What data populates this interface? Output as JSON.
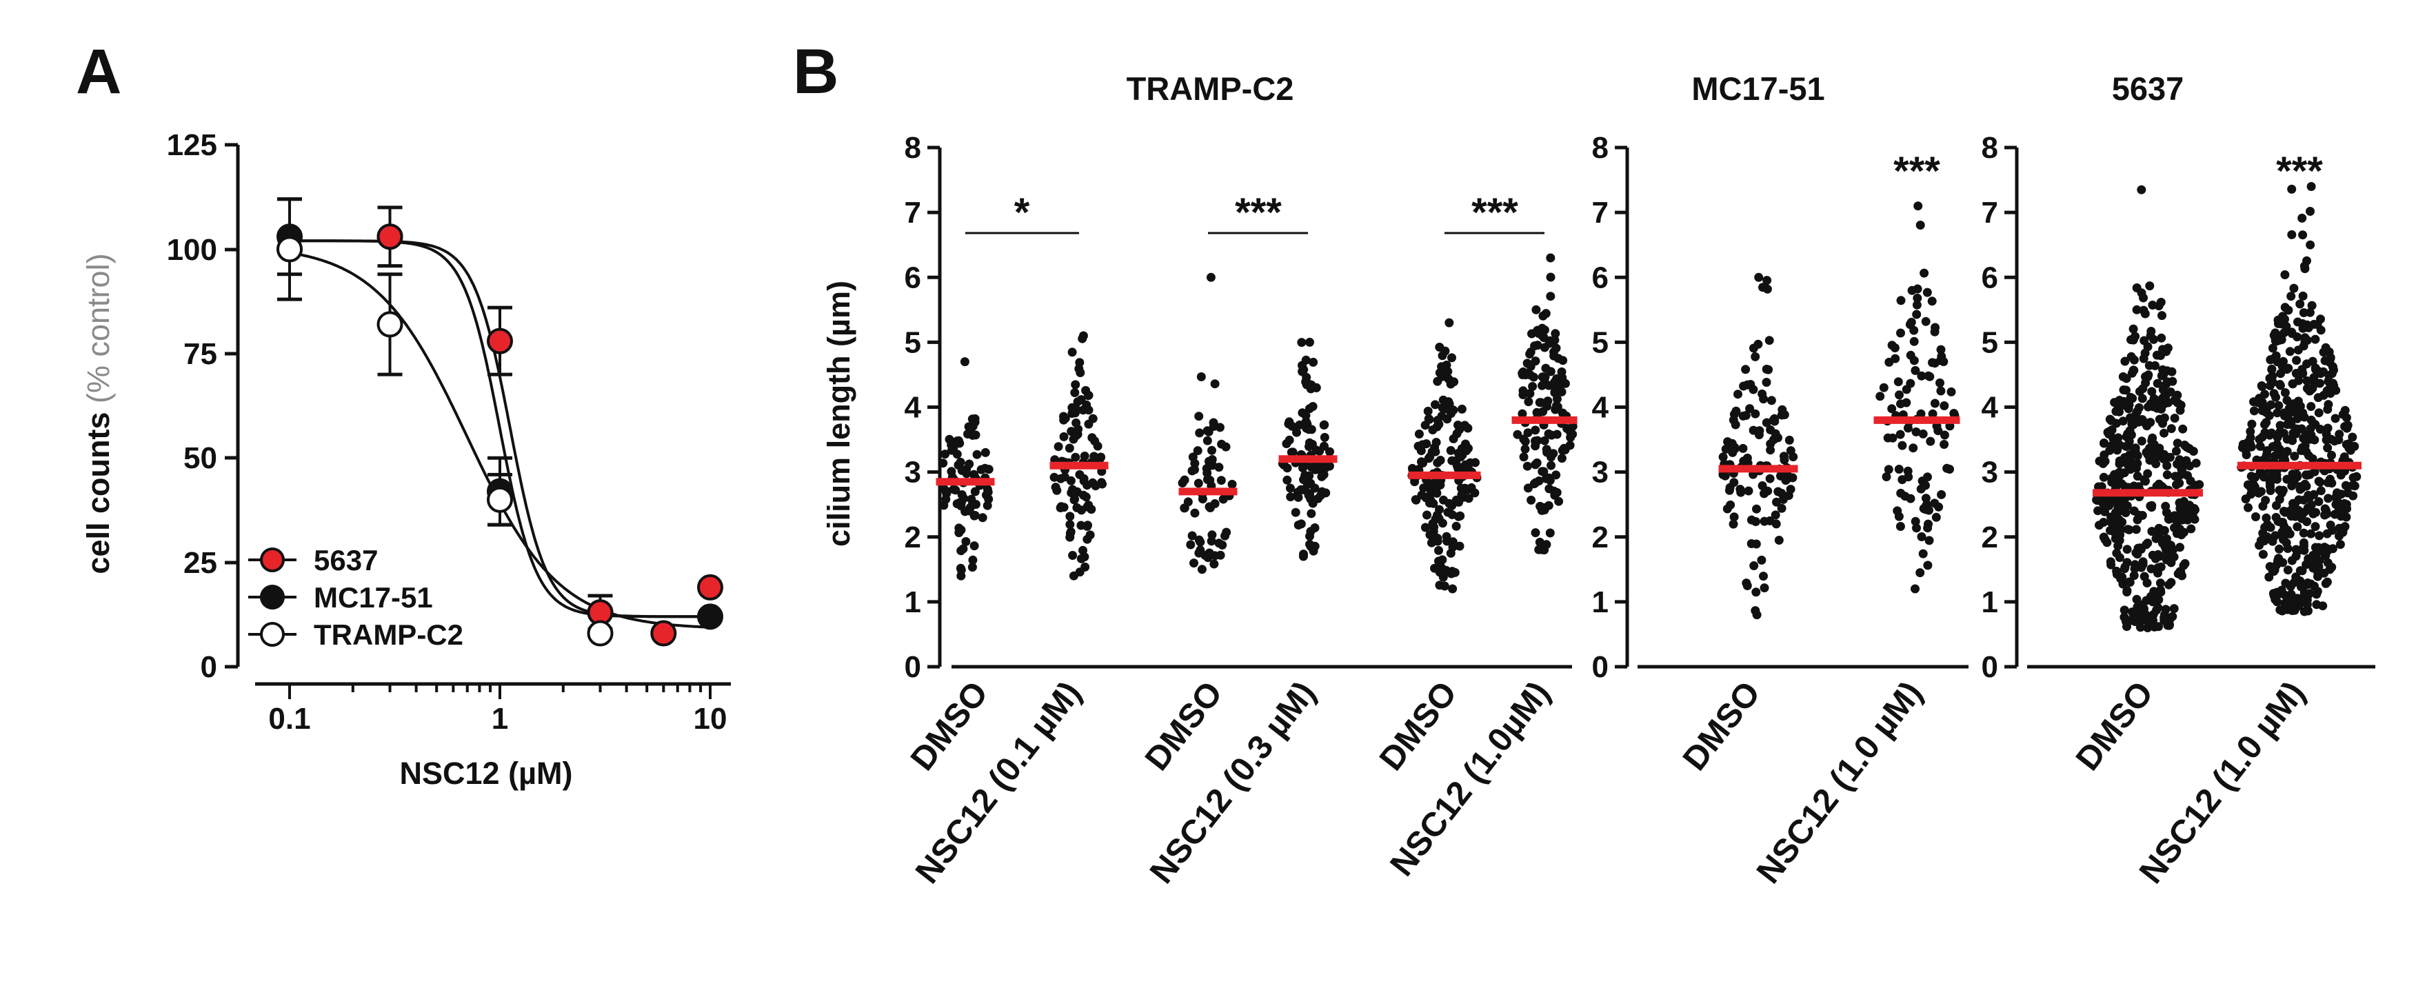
{
  "panel_a": {
    "letter": "A",
    "ylabel_main": "cell counts ",
    "ylabel_paren": "(% control)",
    "xlabel": "NSC12 (µM)",
    "yticks": [
      "0",
      "25",
      "50",
      "75",
      "100",
      "125"
    ],
    "xticks": [
      "0.1",
      "1",
      "10"
    ],
    "legend": [
      "5637",
      "MC17-51",
      "TRAMP-C2"
    ]
  },
  "panel_b": {
    "letter": "B",
    "ylabel": "cilium length (µm)",
    "yticks": [
      "0",
      "1",
      "2",
      "3",
      "4",
      "5",
      "6",
      "7",
      "8"
    ],
    "titles": [
      "TRAMP-C2",
      "MC17-51",
      "5637"
    ],
    "categories": [
      "DMSO",
      "NSC12 (0.1 µM)",
      "DMSO",
      "NSC12 (0.3 µM)",
      "DMSO",
      "NSC12 (1.0µM)",
      "DMSO",
      "NSC12 (1.0 µM)",
      "DMSO",
      "NSC12 (1.0 µM)"
    ],
    "significance": [
      "*",
      "***",
      "***",
      "***",
      "***"
    ]
  },
  "colors": {
    "red": "#e8242b",
    "black": "#111111",
    "white": "#ffffff"
  },
  "chart_data": [
    {
      "type": "line",
      "panel": "A",
      "xlabel": "NSC12 (µM)",
      "ylabel": "cell counts (% control)",
      "xscale": "log",
      "xlim": [
        0.05,
        15
      ],
      "ylim": [
        0,
        125
      ],
      "legend_position": "bottom-left",
      "series": [
        {
          "name": "5637",
          "color": "#e8242b",
          "x": [
            0.1,
            0.3,
            1,
            3,
            6,
            10
          ],
          "y": [
            100,
            103,
            78,
            13,
            8,
            19
          ],
          "err": [
            0,
            0,
            8,
            0,
            0,
            0
          ],
          "fit": {
            "bottom": 12,
            "top": 102,
            "ec50": 1.12,
            "hill": 5
          }
        },
        {
          "name": "MC17-51",
          "color": "#111111",
          "x": [
            0.1,
            0.3,
            1,
            3,
            10
          ],
          "y": [
            103,
            103,
            42,
            13,
            12
          ],
          "err": [
            9,
            7,
            8,
            4,
            0
          ],
          "fit": {
            "bottom": 12,
            "top": 102,
            "ec50": 1.0,
            "hill": 5
          }
        },
        {
          "name": "TRAMP-C2",
          "color": "#ffffff",
          "x": [
            0.1,
            0.3,
            1,
            3
          ],
          "y": [
            100,
            82,
            40,
            8
          ],
          "err": [
            12,
            12,
            6,
            0
          ],
          "fit": {
            "bottom": 9,
            "top": 101,
            "ec50": 0.7,
            "hill": 2
          }
        }
      ]
    },
    {
      "type": "scatter",
      "panel": "B",
      "title": "TRAMP-C2",
      "ylabel": "cilium length (µm)",
      "ylim": [
        0,
        8
      ],
      "categories": [
        "DMSO",
        "NSC12 (0.1 µM)",
        "DMSO",
        "NSC12 (0.3 µM)",
        "DMSO",
        "NSC12 (1.0µM)"
      ],
      "means": [
        2.85,
        3.1,
        2.7,
        3.2,
        2.95,
        3.8
      ],
      "ranges": [
        [
          1.4,
          4.7
        ],
        [
          1.4,
          5.1
        ],
        [
          1.5,
          6.0
        ],
        [
          1.7,
          5.0
        ],
        [
          1.2,
          5.3
        ],
        [
          1.8,
          6.3
        ]
      ],
      "n_points": [
        85,
        100,
        65,
        105,
        170,
        140
      ],
      "comparisons": [
        {
          "pair": [
            0,
            1
          ],
          "label": "*"
        },
        {
          "pair": [
            2,
            3
          ],
          "label": "***"
        },
        {
          "pair": [
            4,
            5
          ],
          "label": "***"
        }
      ]
    },
    {
      "type": "scatter",
      "panel": "B",
      "title": "MC17-51",
      "ylim": [
        0,
        8
      ],
      "categories": [
        "DMSO",
        "NSC12 (1.0 µM)"
      ],
      "means": [
        3.05,
        3.8
      ],
      "ranges": [
        [
          0.8,
          6.0
        ],
        [
          1.2,
          7.1
        ]
      ],
      "n_points": [
        120,
        110
      ],
      "comparisons": [
        {
          "pair": [
            0,
            1
          ],
          "label": "***"
        }
      ]
    },
    {
      "type": "scatter",
      "panel": "B",
      "title": "5637",
      "ylim": [
        0,
        8
      ],
      "categories": [
        "DMSO",
        "NSC12 (1.0 µM)"
      ],
      "means": [
        2.68,
        3.1
      ],
      "ranges": [
        [
          0.6,
          7.35
        ],
        [
          0.85,
          7.4
        ]
      ],
      "n_points": [
        480,
        520
      ],
      "comparisons": [
        {
          "pair": [
            0,
            1
          ],
          "label": "***"
        }
      ]
    }
  ]
}
